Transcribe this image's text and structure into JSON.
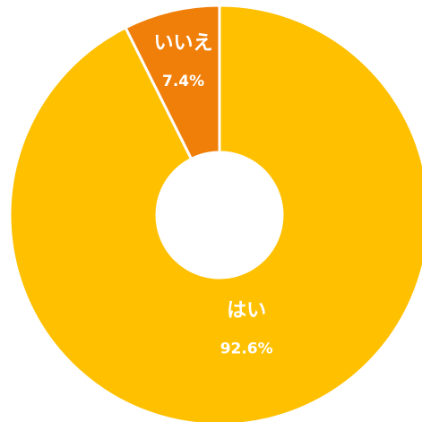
{
  "chart_data": {
    "type": "donut",
    "categories": [
      "はい",
      "いいえ"
    ],
    "values": [
      92.6,
      7.4
    ],
    "value_labels": [
      "92.6%",
      "7.4%"
    ],
    "colors": [
      "#FFC000",
      "#F07F0A"
    ]
  }
}
